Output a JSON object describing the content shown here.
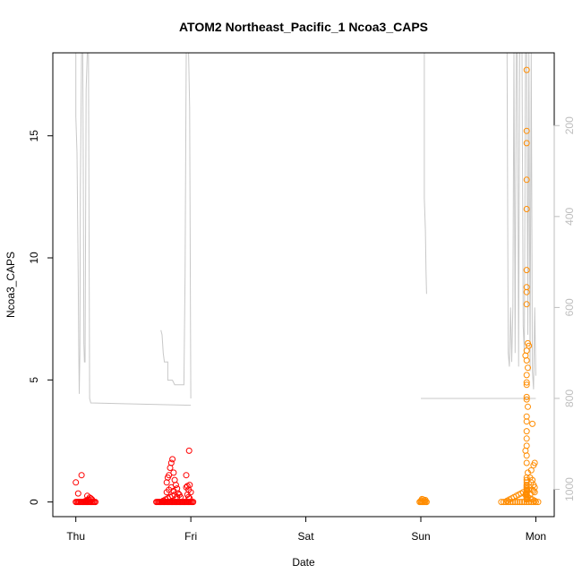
{
  "chart_data": {
    "type": "scatter",
    "title": "ATOM2 Northeast_Pacific_1 Ncoa3_CAPS",
    "xlabel": "Date",
    "ylabel": "Ncoa3_CAPS",
    "x_tick_labels": [
      "Thu",
      "Fri",
      "Sat",
      "Sun",
      "Mon"
    ],
    "x_tick_values_days": [
      0,
      1,
      2,
      3,
      4
    ],
    "xlim_days": [
      -0.2,
      4.16
    ],
    "ylim": [
      -0.6,
      18.4
    ],
    "y_ticks": [
      0,
      5,
      10,
      15
    ],
    "y2_ticks": [
      200,
      400,
      600,
      800,
      1000
    ],
    "y2lim": [
      1060,
      40
    ],
    "grid": false,
    "colors": {
      "series_red": "#ff0000",
      "series_orange": "#ff8c00",
      "depth_line": "#c8c8c8",
      "axis": "#000000",
      "y2_axis": "#bebebe"
    },
    "series": [
      {
        "color": "red",
        "x_days": [
          0.0,
          0.01,
          0.02,
          0.03,
          0.04,
          0.05,
          0.06,
          0.07,
          0.08,
          0.09,
          0.1,
          0.11,
          0.12,
          0.13,
          0.14,
          0.15,
          0.16,
          0.17,
          0.08,
          0.09,
          0.1,
          0.11,
          0.0,
          0.02,
          0.05,
          0.1,
          0.12,
          0.13,
          0.14,
          0.7,
          0.71,
          0.72,
          0.73,
          0.74,
          0.75,
          0.76,
          0.77,
          0.78,
          0.79,
          0.8,
          0.81,
          0.82,
          0.83,
          0.84,
          0.85,
          0.86,
          0.87,
          0.88,
          0.89,
          0.9,
          0.91,
          0.92,
          0.93,
          0.94,
          0.95,
          0.96,
          0.97,
          0.98,
          0.99,
          1.0,
          1.01,
          1.02,
          0.76,
          0.78,
          0.8,
          0.82,
          0.84,
          0.86,
          0.88,
          0.79,
          0.81,
          0.83,
          0.85,
          0.79,
          0.8,
          0.81,
          0.82,
          0.83,
          0.84,
          0.85,
          0.86,
          0.87,
          0.88,
          0.89,
          0.9,
          0.91,
          0.97,
          0.98,
          0.99,
          1.0,
          0.96,
          0.97,
          0.98,
          0.99,
          0.96,
          0.985
        ],
        "y": [
          0.0,
          0.0,
          0.0,
          0.0,
          0.0,
          0.0,
          0.0,
          0.0,
          0.0,
          0.0,
          0.0,
          0.0,
          0.0,
          0.0,
          0.0,
          0.0,
          0.0,
          0.0,
          0.03,
          0.05,
          0.08,
          0.1,
          0.8,
          0.35,
          1.1,
          0.25,
          0.18,
          0.15,
          0.1,
          0.0,
          0.0,
          0.0,
          0.0,
          0.0,
          0.0,
          0.0,
          0.0,
          0.0,
          0.0,
          0.0,
          0.0,
          0.0,
          0.0,
          0.0,
          0.0,
          0.0,
          0.0,
          0.0,
          0.0,
          0.0,
          0.0,
          0.0,
          0.0,
          0.0,
          0.0,
          0.0,
          0.0,
          0.0,
          0.0,
          0.0,
          0.0,
          0.0,
          0.05,
          0.1,
          0.15,
          0.2,
          0.25,
          0.3,
          0.2,
          0.4,
          0.5,
          0.6,
          0.45,
          0.8,
          1.0,
          1.1,
          1.4,
          1.6,
          1.75,
          1.2,
          0.9,
          0.7,
          0.55,
          0.35,
          0.3,
          0.2,
          0.3,
          0.5,
          0.7,
          0.4,
          1.1,
          0.65,
          0.2,
          0.15,
          0.6,
          2.1
        ]
      },
      {
        "color": "orange",
        "x_days": [
          2.99,
          3.0,
          3.01,
          3.02,
          3.03,
          3.04,
          3.05,
          3.0,
          3.02,
          3.04,
          3.01,
          3.03,
          3.7,
          3.72,
          3.74,
          3.76,
          3.78,
          3.8,
          3.82,
          3.84,
          3.86,
          3.88,
          3.9,
          3.92,
          3.94,
          3.96,
          3.98,
          4.0,
          4.02,
          3.75,
          3.77,
          3.79,
          3.81,
          3.83,
          3.85,
          3.87,
          3.89,
          3.91,
          3.93,
          3.95,
          3.97,
          3.99,
          3.92,
          3.92,
          3.92,
          3.92,
          3.92,
          3.92,
          3.92,
          3.92,
          3.92,
          3.93,
          3.94,
          3.92,
          3.91,
          3.92,
          3.93,
          3.92,
          3.92,
          3.92,
          3.92,
          3.92,
          3.93,
          3.92,
          3.92,
          3.92,
          3.92,
          3.92,
          3.91,
          3.92,
          3.92,
          3.93,
          3.92,
          3.92,
          3.92,
          3.92,
          3.92,
          3.92,
          3.92,
          3.92,
          3.92,
          3.92,
          3.92,
          3.92,
          3.92,
          3.92,
          3.92,
          3.92,
          3.94,
          3.92,
          3.92,
          3.92,
          3.98,
          3.96,
          3.99,
          3.95,
          3.97,
          3.99,
          3.96,
          3.98,
          3.97,
          3.99,
          3.95,
          3.97,
          3.98
        ],
        "y": [
          0.0,
          0.0,
          0.0,
          0.0,
          0.0,
          0.0,
          0.0,
          0.05,
          0.1,
          0.08,
          0.12,
          0.06,
          0.0,
          0.0,
          0.0,
          0.0,
          0.0,
          0.0,
          0.0,
          0.0,
          0.0,
          0.0,
          0.0,
          0.0,
          0.0,
          0.0,
          0.0,
          0.0,
          0.0,
          0.05,
          0.1,
          0.15,
          0.2,
          0.25,
          0.3,
          0.35,
          0.4,
          0.3,
          0.2,
          0.15,
          0.1,
          0.05,
          17.7,
          15.2,
          14.7,
          13.2,
          12.0,
          9.5,
          8.8,
          8.6,
          8.1,
          6.5,
          6.4,
          6.2,
          6.0,
          5.8,
          5.5,
          5.2,
          4.9,
          4.8,
          4.3,
          4.2,
          3.9,
          3.5,
          3.3,
          2.9,
          2.6,
          2.3,
          2.1,
          1.9,
          1.6,
          1.2,
          1.0,
          0.9,
          0.7,
          0.5,
          0.4,
          0.3,
          0.2,
          0.15,
          0.1,
          0.25,
          0.35,
          0.45,
          0.55,
          0.6,
          0.65,
          0.8,
          0.5,
          0.3,
          0.2,
          0.1,
          1.5,
          1.3,
          1.6,
          1.0,
          0.9,
          0.6,
          0.8,
          0.7,
          0.5,
          0.4,
          0.3,
          3.2,
          0.45
        ]
      }
    ],
    "depth_series": {
      "color": "grey",
      "axis": "right",
      "segments": [
        {
          "x_days": [
            0.0,
            0.0,
            0.01,
            0.02,
            0.025,
            0.03,
            0.035,
            0.04,
            0.05,
            0.06,
            0.065,
            0.07,
            0.075,
            0.08,
            0.09,
            0.1,
            0.11,
            0.12,
            0.13,
            1.0
          ],
          "y2": [
            40,
            180,
            260,
            520,
            680,
            790,
            700,
            330,
            40,
            40,
            290,
            680,
            720,
            720,
            120,
            40,
            40,
            800,
            810,
            815
          ]
        },
        {
          "x_days": [
            0.74,
            0.74,
            0.75,
            0.76,
            0.77,
            0.78,
            0.79,
            0.8,
            0.8,
            0.8,
            0.82,
            0.84,
            0.86,
            0.88,
            0.89,
            0.9,
            0.91,
            0.92,
            0.93,
            0.94,
            0.95,
            0.96,
            0.97,
            0.98,
            0.99,
            1.0
          ],
          "y2": [
            650,
            650,
            660,
            700,
            720,
            720,
            720,
            720,
            740,
            760,
            760,
            760,
            770,
            770,
            770,
            770,
            770,
            770,
            770,
            770,
            530,
            40,
            40,
            40,
            160,
            800
          ]
        },
        {
          "x_days": [
            3.0,
            3.0,
            3.01,
            3.02,
            3.02,
            3.03,
            3.04,
            3.05,
            3.06,
            3.07,
            3.08,
            3.09,
            3.1,
            3.11,
            3.12,
            3.13,
            3.14,
            3.15,
            3.16,
            3.17,
            3.18,
            3.19,
            3.2,
            3.21,
            3.22,
            3.23,
            3.24,
            3.25,
            3.26,
            3.27,
            3.28,
            3.29,
            3.3,
            3.4,
            3.5,
            3.6,
            3.7,
            3.75,
            3.8,
            3.82,
            3.83,
            3.84,
            3.85,
            3.86,
            3.87,
            3.88,
            3.89,
            3.9,
            3.91,
            3.92,
            3.93,
            3.94,
            3.95,
            3.96,
            3.97,
            3.98,
            3.99,
            4.0
          ],
          "y2": [
            800,
            800,
            800,
            800,
            800,
            800,
            800,
            800,
            800,
            800,
            800,
            800,
            800,
            800,
            800,
            800,
            800,
            800,
            800,
            800,
            800,
            800,
            800,
            800,
            800,
            800,
            800,
            800,
            800,
            800,
            800,
            800,
            800,
            800,
            800,
            800,
            800,
            800,
            800,
            800,
            800,
            800,
            800,
            800,
            800,
            800,
            800,
            800,
            800,
            800,
            800,
            800,
            800,
            800,
            800,
            800,
            800,
            800
          ]
        },
        {
          "x_days": [
            3.03,
            3.03,
            3.04,
            3.045,
            3.05
          ],
          "y2": [
            40,
            360,
            430,
            520,
            570
          ]
        },
        {
          "x_days": [
            3.75,
            3.76,
            3.77,
            3.78,
            3.79,
            3.8,
            3.81,
            3.82,
            3.83,
            3.84,
            3.85,
            3.86,
            3.87,
            3.88,
            3.89,
            3.9,
            3.91,
            3.92,
            3.93,
            3.94,
            3.95,
            3.96,
            3.97,
            3.98,
            3.99,
            4.0
          ],
          "y2": [
            40,
            700,
            730,
            600,
            720,
            600,
            40,
            700,
            40,
            40,
            730,
            40,
            40,
            40,
            640,
            700,
            40,
            40,
            660,
            40,
            740,
            40,
            740,
            780,
            600,
            750
          ]
        }
      ]
    }
  }
}
